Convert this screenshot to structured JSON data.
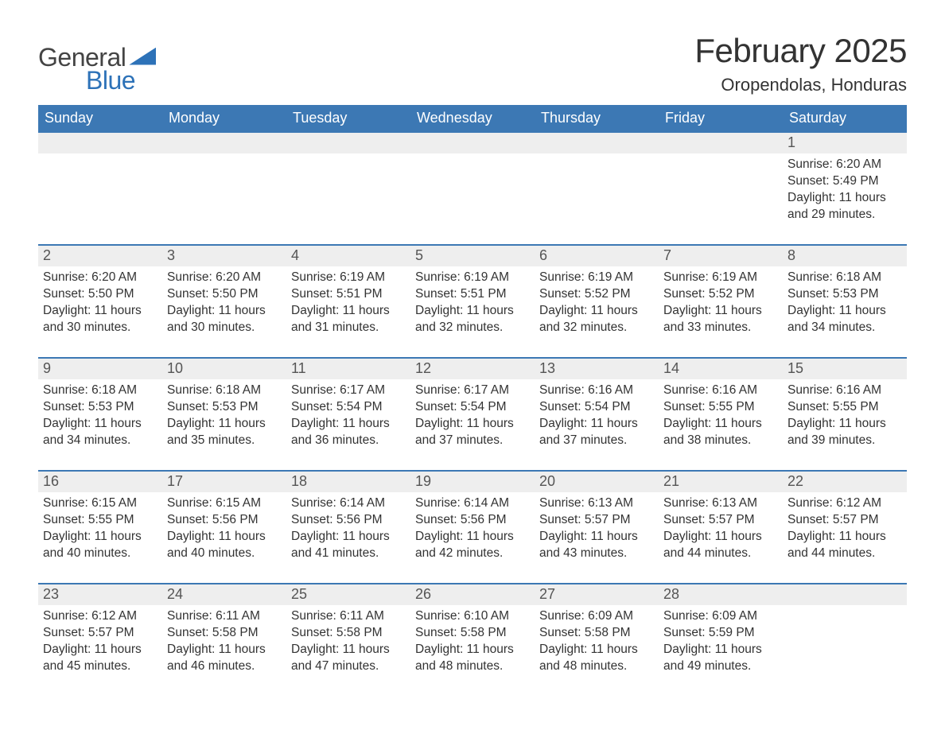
{
  "logo": {
    "text1": "General",
    "text2": "Blue",
    "shape_color": "#2d72b8"
  },
  "title": "February 2025",
  "location": "Oropendolas, Honduras",
  "colors": {
    "header_bg": "#3c78b4",
    "header_fg": "#ffffff",
    "daynum_bg": "#eeeeee",
    "week_border": "#3c78b4",
    "text": "#333333",
    "title_fontsize": 42,
    "location_fontsize": 22,
    "dow_fontsize": 18,
    "body_fontsize": 15.5
  },
  "days_of_week": [
    "Sunday",
    "Monday",
    "Tuesday",
    "Wednesday",
    "Thursday",
    "Friday",
    "Saturday"
  ],
  "weeks": [
    [
      {
        "n": "",
        "sunrise": "",
        "sunset": "",
        "daylight": ""
      },
      {
        "n": "",
        "sunrise": "",
        "sunset": "",
        "daylight": ""
      },
      {
        "n": "",
        "sunrise": "",
        "sunset": "",
        "daylight": ""
      },
      {
        "n": "",
        "sunrise": "",
        "sunset": "",
        "daylight": ""
      },
      {
        "n": "",
        "sunrise": "",
        "sunset": "",
        "daylight": ""
      },
      {
        "n": "",
        "sunrise": "",
        "sunset": "",
        "daylight": ""
      },
      {
        "n": "1",
        "sunrise": "Sunrise: 6:20 AM",
        "sunset": "Sunset: 5:49 PM",
        "daylight": "Daylight: 11 hours and 29 minutes."
      }
    ],
    [
      {
        "n": "2",
        "sunrise": "Sunrise: 6:20 AM",
        "sunset": "Sunset: 5:50 PM",
        "daylight": "Daylight: 11 hours and 30 minutes."
      },
      {
        "n": "3",
        "sunrise": "Sunrise: 6:20 AM",
        "sunset": "Sunset: 5:50 PM",
        "daylight": "Daylight: 11 hours and 30 minutes."
      },
      {
        "n": "4",
        "sunrise": "Sunrise: 6:19 AM",
        "sunset": "Sunset: 5:51 PM",
        "daylight": "Daylight: 11 hours and 31 minutes."
      },
      {
        "n": "5",
        "sunrise": "Sunrise: 6:19 AM",
        "sunset": "Sunset: 5:51 PM",
        "daylight": "Daylight: 11 hours and 32 minutes."
      },
      {
        "n": "6",
        "sunrise": "Sunrise: 6:19 AM",
        "sunset": "Sunset: 5:52 PM",
        "daylight": "Daylight: 11 hours and 32 minutes."
      },
      {
        "n": "7",
        "sunrise": "Sunrise: 6:19 AM",
        "sunset": "Sunset: 5:52 PM",
        "daylight": "Daylight: 11 hours and 33 minutes."
      },
      {
        "n": "8",
        "sunrise": "Sunrise: 6:18 AM",
        "sunset": "Sunset: 5:53 PM",
        "daylight": "Daylight: 11 hours and 34 minutes."
      }
    ],
    [
      {
        "n": "9",
        "sunrise": "Sunrise: 6:18 AM",
        "sunset": "Sunset: 5:53 PM",
        "daylight": "Daylight: 11 hours and 34 minutes."
      },
      {
        "n": "10",
        "sunrise": "Sunrise: 6:18 AM",
        "sunset": "Sunset: 5:53 PM",
        "daylight": "Daylight: 11 hours and 35 minutes."
      },
      {
        "n": "11",
        "sunrise": "Sunrise: 6:17 AM",
        "sunset": "Sunset: 5:54 PM",
        "daylight": "Daylight: 11 hours and 36 minutes."
      },
      {
        "n": "12",
        "sunrise": "Sunrise: 6:17 AM",
        "sunset": "Sunset: 5:54 PM",
        "daylight": "Daylight: 11 hours and 37 minutes."
      },
      {
        "n": "13",
        "sunrise": "Sunrise: 6:16 AM",
        "sunset": "Sunset: 5:54 PM",
        "daylight": "Daylight: 11 hours and 37 minutes."
      },
      {
        "n": "14",
        "sunrise": "Sunrise: 6:16 AM",
        "sunset": "Sunset: 5:55 PM",
        "daylight": "Daylight: 11 hours and 38 minutes."
      },
      {
        "n": "15",
        "sunrise": "Sunrise: 6:16 AM",
        "sunset": "Sunset: 5:55 PM",
        "daylight": "Daylight: 11 hours and 39 minutes."
      }
    ],
    [
      {
        "n": "16",
        "sunrise": "Sunrise: 6:15 AM",
        "sunset": "Sunset: 5:55 PM",
        "daylight": "Daylight: 11 hours and 40 minutes."
      },
      {
        "n": "17",
        "sunrise": "Sunrise: 6:15 AM",
        "sunset": "Sunset: 5:56 PM",
        "daylight": "Daylight: 11 hours and 40 minutes."
      },
      {
        "n": "18",
        "sunrise": "Sunrise: 6:14 AM",
        "sunset": "Sunset: 5:56 PM",
        "daylight": "Daylight: 11 hours and 41 minutes."
      },
      {
        "n": "19",
        "sunrise": "Sunrise: 6:14 AM",
        "sunset": "Sunset: 5:56 PM",
        "daylight": "Daylight: 11 hours and 42 minutes."
      },
      {
        "n": "20",
        "sunrise": "Sunrise: 6:13 AM",
        "sunset": "Sunset: 5:57 PM",
        "daylight": "Daylight: 11 hours and 43 minutes."
      },
      {
        "n": "21",
        "sunrise": "Sunrise: 6:13 AM",
        "sunset": "Sunset: 5:57 PM",
        "daylight": "Daylight: 11 hours and 44 minutes."
      },
      {
        "n": "22",
        "sunrise": "Sunrise: 6:12 AM",
        "sunset": "Sunset: 5:57 PM",
        "daylight": "Daylight: 11 hours and 44 minutes."
      }
    ],
    [
      {
        "n": "23",
        "sunrise": "Sunrise: 6:12 AM",
        "sunset": "Sunset: 5:57 PM",
        "daylight": "Daylight: 11 hours and 45 minutes."
      },
      {
        "n": "24",
        "sunrise": "Sunrise: 6:11 AM",
        "sunset": "Sunset: 5:58 PM",
        "daylight": "Daylight: 11 hours and 46 minutes."
      },
      {
        "n": "25",
        "sunrise": "Sunrise: 6:11 AM",
        "sunset": "Sunset: 5:58 PM",
        "daylight": "Daylight: 11 hours and 47 minutes."
      },
      {
        "n": "26",
        "sunrise": "Sunrise: 6:10 AM",
        "sunset": "Sunset: 5:58 PM",
        "daylight": "Daylight: 11 hours and 48 minutes."
      },
      {
        "n": "27",
        "sunrise": "Sunrise: 6:09 AM",
        "sunset": "Sunset: 5:58 PM",
        "daylight": "Daylight: 11 hours and 48 minutes."
      },
      {
        "n": "28",
        "sunrise": "Sunrise: 6:09 AM",
        "sunset": "Sunset: 5:59 PM",
        "daylight": "Daylight: 11 hours and 49 minutes."
      },
      {
        "n": "",
        "sunrise": "",
        "sunset": "",
        "daylight": ""
      }
    ]
  ]
}
